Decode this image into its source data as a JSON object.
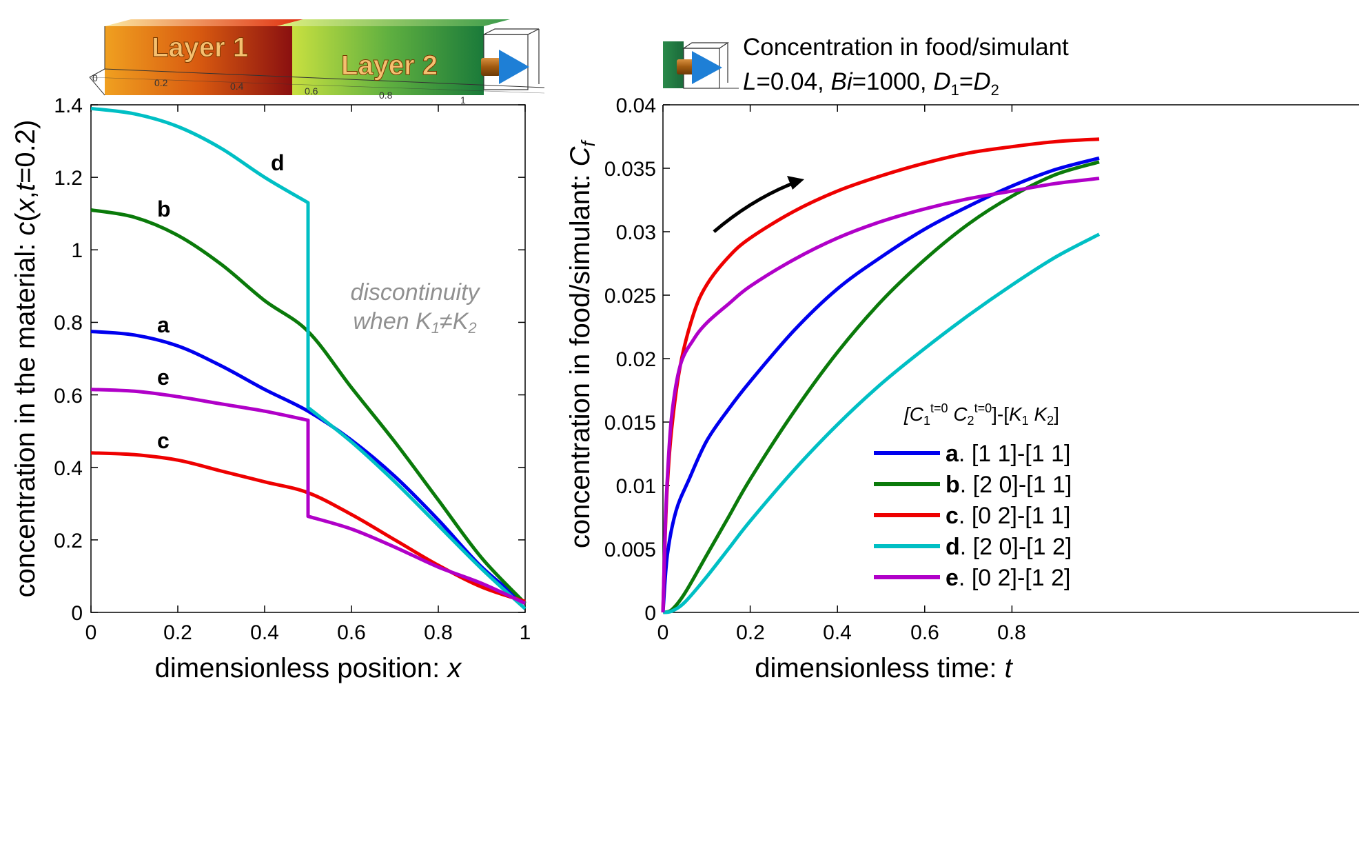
{
  "chart_data": [
    {
      "type": "line",
      "xlabel": "dimensionless position:",
      "xlabel_var": "x",
      "ylabel_prefix": "concentration in the material:",
      "ylabel_expr": [
        "c",
        "(",
        "x",
        ",",
        "t",
        "=0.2)"
      ],
      "xlim": [
        0,
        1
      ],
      "ylim": [
        0,
        1.4
      ],
      "xticks": [
        "0",
        "0.2",
        "0.4",
        "0.6",
        "0.8",
        "1"
      ],
      "yticks": [
        "0",
        "0.2",
        "0.4",
        "0.6",
        "0.8",
        "1",
        "1.2",
        "1.4"
      ],
      "grid": false,
      "annotation": {
        "line1": "discontinuity",
        "line2_prefix": "when K",
        "line2_sub1": "1",
        "line2_neq": "≠K",
        "line2_sub2": "2"
      },
      "schematic": {
        "layer1": "Layer 1",
        "layer2": "Layer 2",
        "ticks": [
          "0",
          "0.2",
          "0.4",
          "0.6",
          "0.8",
          "1"
        ]
      },
      "series": [
        {
          "label": "a",
          "color": "#0000ee",
          "x": [
            0,
            0.1,
            0.2,
            0.3,
            0.4,
            0.5,
            0.6,
            0.7,
            0.8,
            0.9,
            1.0
          ],
          "y": [
            0.775,
            0.765,
            0.735,
            0.68,
            0.615,
            0.555,
            0.475,
            0.375,
            0.255,
            0.125,
            0.025
          ]
        },
        {
          "label": "b",
          "color": "#0a7a0a",
          "x": [
            0,
            0.1,
            0.2,
            0.3,
            0.4,
            0.5,
            0.6,
            0.7,
            0.8,
            0.9,
            1.0
          ],
          "y": [
            1.11,
            1.09,
            1.04,
            0.96,
            0.86,
            0.775,
            0.62,
            0.47,
            0.31,
            0.15,
            0.025
          ]
        },
        {
          "label": "c",
          "color": "#ee0000",
          "x": [
            0,
            0.1,
            0.2,
            0.3,
            0.4,
            0.5,
            0.6,
            0.7,
            0.8,
            0.9,
            1.0
          ],
          "y": [
            0.44,
            0.435,
            0.42,
            0.39,
            0.36,
            0.33,
            0.27,
            0.2,
            0.13,
            0.07,
            0.03
          ]
        },
        {
          "label": "d",
          "color": "#00bfc4",
          "x": [
            0,
            0.1,
            0.2,
            0.3,
            0.4,
            0.5,
            0.5,
            0.6,
            0.7,
            0.8,
            0.9,
            1.0
          ],
          "y": [
            1.39,
            1.375,
            1.34,
            1.28,
            1.2,
            1.13,
            0.565,
            0.47,
            0.36,
            0.24,
            0.12,
            0.01
          ]
        },
        {
          "label": "e",
          "color": "#b000c8",
          "x": [
            0,
            0.1,
            0.2,
            0.3,
            0.4,
            0.5,
            0.5,
            0.6,
            0.7,
            0.8,
            0.9,
            1.0
          ],
          "y": [
            0.615,
            0.61,
            0.595,
            0.575,
            0.555,
            0.53,
            0.265,
            0.23,
            0.18,
            0.125,
            0.08,
            0.025
          ]
        }
      ]
    },
    {
      "type": "line",
      "header_line1": "Concentration in food/simulant",
      "header_line2": {
        "L": "L",
        "L_val": "=0.04, ",
        "Bi": "Bi",
        "Bi_val": "=1000, ",
        "D": "D",
        "D1": "1",
        "eq": "=",
        "D2": "2"
      },
      "xlabel": "dimensionless time:",
      "xlabel_var": "t",
      "ylabel": "concentration in food/simulant:",
      "ylabel_var": "C",
      "ylabel_sub": "f",
      "xlim": [
        0,
        1
      ],
      "ylim": [
        0,
        0.04
      ],
      "xticks": [
        "0",
        "0.2",
        "0.4",
        "0.6",
        "0.8"
      ],
      "yticks": [
        "0",
        "0.005",
        "0.01",
        "0.015",
        "0.02",
        "0.025",
        "0.03",
        "0.035",
        "0.04"
      ],
      "grid": false,
      "legend_title": "[C1t=0 C2t=0]-[K1 K2]",
      "series": [
        {
          "label": "a",
          "legend": "[1 1]-[1 1]",
          "color": "#0000ee",
          "x": [
            0,
            0.01,
            0.03,
            0.06,
            0.1,
            0.15,
            0.2,
            0.3,
            0.4,
            0.5,
            0.6,
            0.7,
            0.8,
            0.9,
            1.0
          ],
          "y": [
            0,
            0.0045,
            0.008,
            0.0105,
            0.0135,
            0.016,
            0.0182,
            0.0222,
            0.0255,
            0.028,
            0.0302,
            0.032,
            0.0336,
            0.0349,
            0.0358
          ]
        },
        {
          "label": "b",
          "legend": "[2 0]-[1 1]",
          "color": "#0a7a0a",
          "x": [
            0,
            0.02,
            0.05,
            0.1,
            0.15,
            0.2,
            0.3,
            0.4,
            0.5,
            0.6,
            0.7,
            0.8,
            0.9,
            1.0
          ],
          "y": [
            0,
            0.0002,
            0.0015,
            0.0045,
            0.0075,
            0.0105,
            0.0158,
            0.0205,
            0.0245,
            0.0278,
            0.0306,
            0.0328,
            0.0345,
            0.0355
          ]
        },
        {
          "label": "c",
          "legend": "[0 2]-[1 1]",
          "color": "#ee0000",
          "x": [
            0,
            0.005,
            0.01,
            0.02,
            0.04,
            0.07,
            0.1,
            0.15,
            0.2,
            0.3,
            0.4,
            0.5,
            0.6,
            0.7,
            0.8,
            0.9,
            1.0
          ],
          "y": [
            0,
            0.006,
            0.01,
            0.0145,
            0.0195,
            0.0235,
            0.0258,
            0.028,
            0.0295,
            0.0316,
            0.0332,
            0.0344,
            0.0354,
            0.0362,
            0.0367,
            0.0371,
            0.0373
          ]
        },
        {
          "label": "d",
          "legend": "[2 0]-[1 2]",
          "color": "#00bfc4",
          "x": [
            0,
            0.02,
            0.05,
            0.1,
            0.15,
            0.2,
            0.3,
            0.4,
            0.5,
            0.6,
            0.7,
            0.8,
            0.9,
            1.0
          ],
          "y": [
            0,
            0.0001,
            0.0008,
            0.0028,
            0.005,
            0.0072,
            0.0112,
            0.0148,
            0.018,
            0.0208,
            0.0234,
            0.0258,
            0.028,
            0.0298
          ]
        },
        {
          "label": "e",
          "legend": "[0 2]-[1 2]",
          "color": "#b000c8",
          "x": [
            0,
            0.005,
            0.01,
            0.02,
            0.04,
            0.07,
            0.1,
            0.15,
            0.2,
            0.3,
            0.4,
            0.5,
            0.6,
            0.7,
            0.8,
            0.9,
            1.0
          ],
          "y": [
            0,
            0.0065,
            0.0105,
            0.0155,
            0.0195,
            0.0215,
            0.0228,
            0.0243,
            0.0257,
            0.0278,
            0.0295,
            0.0308,
            0.0318,
            0.0326,
            0.0332,
            0.0338,
            0.0342
          ]
        }
      ]
    }
  ]
}
